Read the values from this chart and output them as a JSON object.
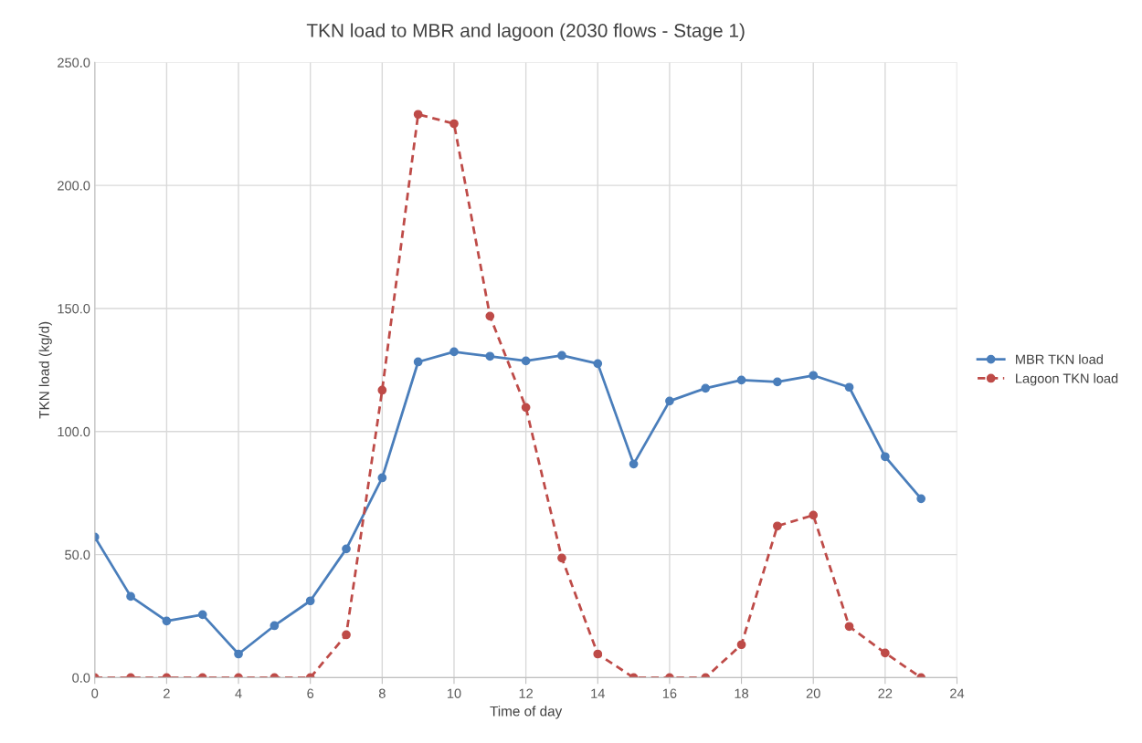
{
  "chart_data": {
    "type": "line",
    "title": "TKN load to MBR and lagoon (2030 flows - Stage 1)",
    "xlabel": "Time of day",
    "ylabel": "TKN load (kg/d)",
    "x": [
      0,
      1,
      2,
      3,
      4,
      5,
      6,
      7,
      8,
      9,
      10,
      11,
      12,
      13,
      14,
      15,
      16,
      17,
      18,
      19,
      20,
      21,
      22,
      23
    ],
    "series": [
      {
        "name": "MBR TKN load",
        "color": "#4a7ebb",
        "line_style": "solid",
        "values": [
          57.1,
          33.0,
          23.0,
          25.6,
          9.6,
          21.1,
          31.2,
          52.3,
          81.2,
          128.3,
          132.4,
          130.6,
          128.7,
          130.9,
          127.6,
          86.8,
          112.4,
          117.6,
          120.9,
          120.2,
          122.8,
          118.0,
          89.8,
          72.7
        ]
      },
      {
        "name": "Lagoon TKN load",
        "color": "#be4b48",
        "line_style": "dashed",
        "values": [
          0,
          0,
          0,
          0,
          0,
          0,
          0,
          17.4,
          116.8,
          228.9,
          225.1,
          146.9,
          109.8,
          48.6,
          9.6,
          0,
          0,
          0,
          13.4,
          61.6,
          66.0,
          20.8,
          10.0,
          0
        ]
      }
    ],
    "xlim": [
      0,
      24
    ],
    "xticks": [
      0,
      2,
      4,
      6,
      8,
      10,
      12,
      14,
      16,
      18,
      20,
      22,
      24
    ],
    "ylim": [
      0,
      250
    ],
    "yticks": [
      {
        "value": 0,
        "label": "0.0"
      },
      {
        "value": 50,
        "label": "50.0"
      },
      {
        "value": 100,
        "label": "100.0"
      },
      {
        "value": 150,
        "label": "150.0"
      },
      {
        "value": 200,
        "label": "200.0"
      },
      {
        "value": 250,
        "label": "250.0"
      }
    ],
    "grid": true,
    "legend": "center right",
    "marker": "circle"
  }
}
